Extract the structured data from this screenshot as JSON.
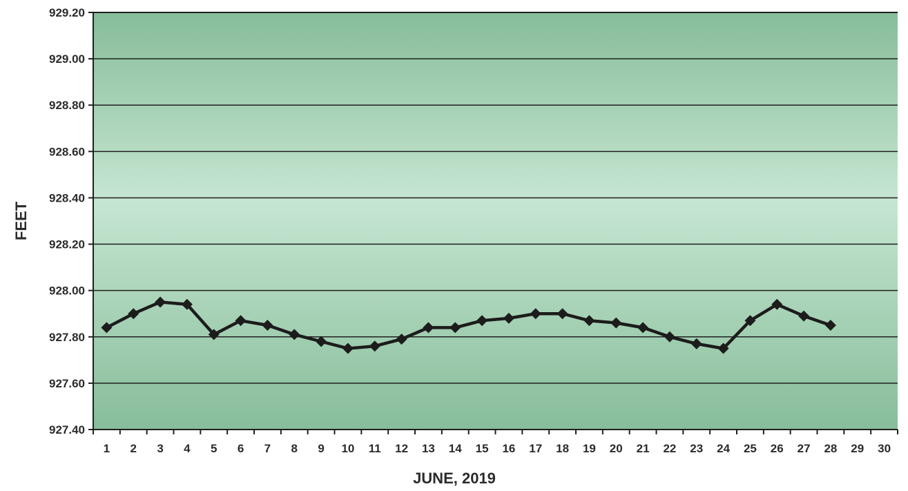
{
  "chart_data": {
    "type": "line",
    "title": "",
    "xlabel": "JUNE, 2019",
    "ylabel": "FEET",
    "ylim": [
      927.4,
      929.2
    ],
    "yticks": [
      "927.40",
      "927.60",
      "927.80",
      "928.00",
      "928.20",
      "928.40",
      "928.60",
      "928.80",
      "929.00",
      "929.20"
    ],
    "categories": [
      "1",
      "2",
      "3",
      "4",
      "5",
      "6",
      "7",
      "8",
      "9",
      "10",
      "11",
      "12",
      "13",
      "14",
      "15",
      "16",
      "17",
      "18",
      "19",
      "20",
      "21",
      "22",
      "23",
      "24",
      "25",
      "26",
      "27",
      "28",
      "29",
      "30"
    ],
    "grid": true,
    "legend": "none",
    "series": [
      {
        "values": [
          927.84,
          927.9,
          927.95,
          927.94,
          927.81,
          927.87,
          927.85,
          927.81,
          927.78,
          927.75,
          927.76,
          927.79,
          927.84,
          927.84,
          927.87,
          927.88,
          927.9,
          927.9,
          927.87,
          927.86,
          927.84,
          927.8,
          927.77,
          927.75,
          927.87,
          927.94,
          927.89,
          927.85,
          null,
          null
        ],
        "color": "#1c1c1c"
      }
    ],
    "colors": {
      "plot_mid": "#c6e6d2",
      "plot_edge": "#87bd9a",
      "line": "#1c1c1c"
    }
  }
}
